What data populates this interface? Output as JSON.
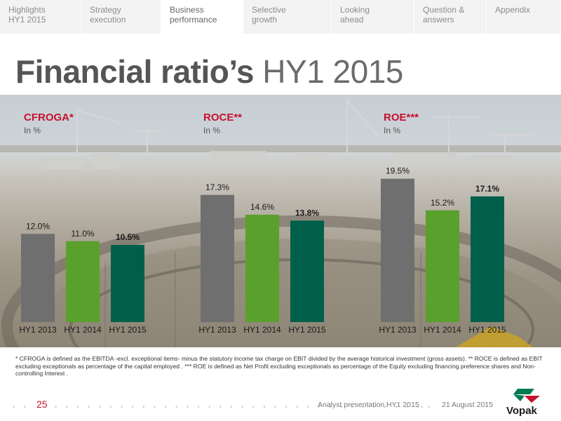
{
  "nav": {
    "tabs": [
      {
        "label": "Highlights\nHY1 2015",
        "active": false
      },
      {
        "label": "Strategy\nexecution",
        "active": false
      },
      {
        "label": "Business\nperformance",
        "active": true
      },
      {
        "label": "Selective\ngrowth",
        "active": false
      },
      {
        "label": "Looking\nahead",
        "active": false
      },
      {
        "label": "Question &\nanswers",
        "active": false
      },
      {
        "label": "Appendix",
        "active": false
      }
    ]
  },
  "title": {
    "bold": "Financial ratio’s",
    "light": " HY1 2015"
  },
  "chart_data": [
    {
      "type": "bar",
      "title": "CFROGA*",
      "subtitle": "In %",
      "categories": [
        "HY1 2013",
        "HY1 2014",
        "HY1 2015"
      ],
      "values": [
        12.0,
        11.0,
        10.5
      ],
      "value_labels": [
        "12.0%",
        "11.0%",
        "10.5%"
      ],
      "ylim": [
        0,
        21
      ],
      "grid": false
    },
    {
      "type": "bar",
      "title": "ROCE**",
      "subtitle": "In %",
      "categories": [
        "HY1 2013",
        "HY1 2014",
        "HY1 2015"
      ],
      "values": [
        17.3,
        14.6,
        13.8
      ],
      "value_labels": [
        "17.3%",
        "14.6%",
        "13.8%"
      ],
      "ylim": [
        0,
        21
      ],
      "grid": false
    },
    {
      "type": "bar",
      "title": "ROE***",
      "subtitle": "In %",
      "categories": [
        "HY1 2013",
        "HY1 2014",
        "HY1 2015"
      ],
      "values": [
        19.5,
        15.2,
        17.1
      ],
      "value_labels": [
        "19.5%",
        "15.2%",
        "17.1%"
      ],
      "ylim": [
        0,
        21
      ],
      "grid": false
    }
  ],
  "colors": {
    "accent": "#c8102e",
    "bar_hy1_2013": "#6f6f6f",
    "bar_hy1_2014": "#5aa02c",
    "bar_hy1_2015": "#005f4a",
    "brand_green": "#007a53"
  },
  "footnote": "* CFROGA is defined as the EBITDA -excl. exceptional items- minus the statutory income tax charge on EBIT divided by the average historical investment (gross assets). ** ROCE is defined as EBIT excluding exceptionals as percentage of the capital employed . *** ROE is defined as Net Profit excluding exceptionals as percentage of the Equity excluding financing preference shares and Non-controlling Interest .",
  "footer": {
    "page_number": "25",
    "presentation": "Analyst presentation HY1 2015",
    "date": "21 August 2015",
    "logo_text": "Vopak"
  }
}
